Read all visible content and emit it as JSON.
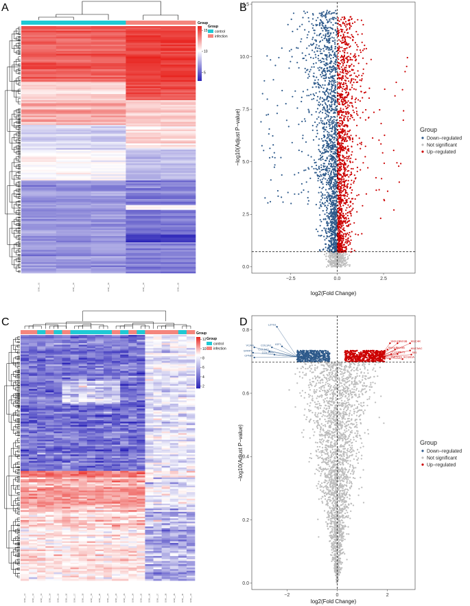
{
  "panels": {
    "A": "A",
    "B": "B",
    "C": "C",
    "D": "D"
  },
  "colors": {
    "down": "#2E5A8B",
    "up": "#CC0000",
    "ns": "#BDBDBD",
    "control": "#1FC9D4",
    "infection": "#F4857D",
    "low": "#2B24B8",
    "mid": "#FFFFFF",
    "high": "#E8231E"
  },
  "heatmap_legend": {
    "title": "Group",
    "subtitle": "Group",
    "control": "control",
    "infection": "infection"
  },
  "volcano_legend": {
    "title": "Group",
    "down": "Down−regulated",
    "ns": "Not significant",
    "up": "Up−regulated"
  },
  "chart_data": [
    {
      "panel": "A",
      "type": "heatmap",
      "columns": [
        "control",
        "control",
        "control",
        "infection",
        "infection"
      ],
      "color_scale": {
        "ticks": [
          "15",
          "10",
          "5"
        ],
        "range": [
          3,
          16
        ]
      },
      "sample_labels": [
        "GSM___01",
        "GSM___02",
        "GSM___03",
        "GSM___04",
        "GSM___05"
      ]
    },
    {
      "panel": "B",
      "type": "scatter",
      "xlabel": "log2(Fold Change)",
      "ylabel": "−log10(Adjust P−value)",
      "xlim": [
        -4.6,
        4.2
      ],
      "ylim": [
        -0.3,
        12.6
      ],
      "xticks": [
        "−2.5",
        "0.0",
        "2.5"
      ],
      "xtick_values": [
        -2.5,
        0,
        2.5
      ],
      "yticks": [
        "0.0",
        "2.5",
        "5.0",
        "7.5",
        "10.0",
        "12.5"
      ],
      "ytick_values": [
        0,
        2.5,
        5,
        7.5,
        10,
        12.5
      ],
      "threshold_y": 0.72,
      "threshold_x": 0
    },
    {
      "panel": "C",
      "type": "heatmap",
      "columns": [
        "infection",
        "infection",
        "control",
        "infection",
        "control",
        "infection",
        "control",
        "control",
        "control",
        "control",
        "control",
        "infection",
        "control",
        "infection",
        "control",
        "infection",
        "infection",
        "infection",
        "infection",
        "control",
        "infection"
      ],
      "color_scale": {
        "ticks": [
          "12",
          "10",
          "8",
          "6",
          "4",
          "2"
        ],
        "range": [
          1.5,
          12.5
        ]
      },
      "sample_labels": [
        "GSM___11",
        "GSM___12",
        "GSM___13",
        "GSM___14",
        "GSM___15",
        "GSM___16",
        "GSM___17",
        "GSM___18",
        "GSM___19",
        "GSM___20",
        "GSM___21",
        "GSM___22",
        "GSM___23",
        "GSM___24",
        "GSM___25",
        "GSM___26",
        "GSM___27",
        "GSM___28",
        "GSM___29",
        "GSM___30",
        "GSM___31"
      ]
    },
    {
      "panel": "D",
      "type": "scatter",
      "xlabel": "log2(Fold Change)",
      "ylabel": "−log10(Adjust P−value)",
      "xlim": [
        -3.4,
        3.1
      ],
      "ylim": [
        -0.02,
        0.845
      ],
      "xticks": [
        "−2",
        "0",
        "2"
      ],
      "xtick_values": [
        -2,
        0,
        2
      ],
      "yticks": [
        "0.0",
        "0.2",
        "0.4",
        "0.6",
        "0.8"
      ],
      "ytick_values": [
        0,
        0.2,
        0.4,
        0.6,
        0.8
      ],
      "threshold_y": 0.698,
      "threshold_x": 0,
      "labeled_genes_down": [
        {
          "name": "LZTS1",
          "x": -2.4,
          "y": 0.81
        },
        {
          "name": "VCAN",
          "x": -3.3,
          "y": 0.745
        },
        {
          "name": "SFRP4",
          "x": -3.35,
          "y": 0.728
        },
        {
          "name": "CPNE7",
          "x": -3.3,
          "y": 0.713
        },
        {
          "name": "COL5A2",
          "x": -2.7,
          "y": 0.732
        },
        {
          "name": "COL3A1",
          "x": -2.6,
          "y": 0.745
        },
        {
          "name": "IGF1",
          "x": -2.2,
          "y": 0.748
        },
        {
          "name": "COL11A1",
          "x": -2.5,
          "y": 0.722
        }
      ],
      "labeled_genes_up": [
        {
          "name": "SNX4.1",
          "x": 2.1,
          "y": 0.758
        },
        {
          "name": "SNX9B",
          "x": 2.4,
          "y": 0.758
        },
        {
          "name": "MUC4R",
          "x": 2.9,
          "y": 0.758
        },
        {
          "name": "SNX4.2",
          "x": 2.0,
          "y": 0.738
        },
        {
          "name": "SNX9B",
          "x": 2.3,
          "y": 0.738
        },
        {
          "name": "MUC5AC",
          "x": 2.9,
          "y": 0.735
        },
        {
          "name": "CXCL5",
          "x": 2.15,
          "y": 0.724
        },
        {
          "name": "KRT1",
          "x": 2.4,
          "y": 0.724
        },
        {
          "name": "S81",
          "x": 2.95,
          "y": 0.722
        },
        {
          "name": "TMPRSS",
          "x": 2.1,
          "y": 0.708
        },
        {
          "name": "SCGB1A",
          "x": 2.6,
          "y": 0.708
        }
      ]
    }
  ]
}
